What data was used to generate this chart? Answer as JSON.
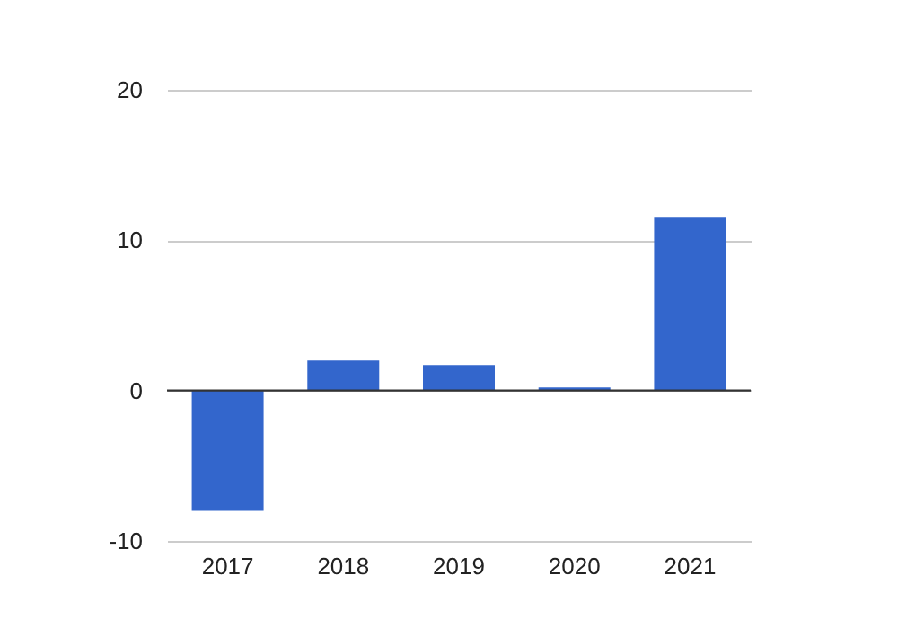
{
  "chart_data": {
    "type": "bar",
    "categories": [
      "2017",
      "2018",
      "2019",
      "2020",
      "2021"
    ],
    "values": [
      -8.0,
      2.0,
      1.7,
      0.2,
      11.5
    ],
    "color": "#3366cc",
    "ylim": [
      -10,
      20
    ],
    "yticks": [
      -10,
      0,
      10,
      20
    ],
    "grid": "y",
    "ref_lines": [
      {
        "axis": "y",
        "value": 0,
        "color": "#333333"
      }
    ]
  }
}
